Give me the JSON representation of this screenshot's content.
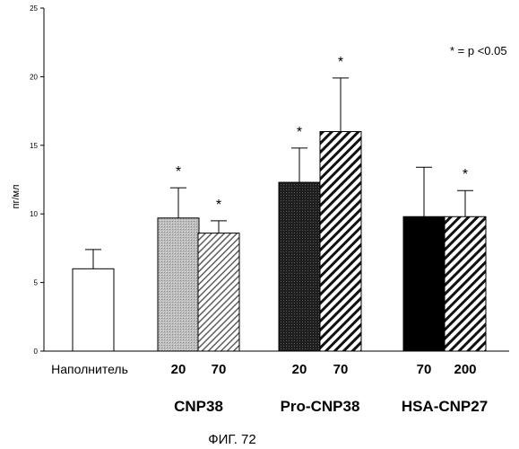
{
  "chart_data": {
    "type": "bar",
    "ylabel": "пг/мл",
    "ylim": [
      0,
      25
    ],
    "yticks": [
      "0",
      "5",
      "10",
      "15",
      "20",
      "25"
    ],
    "annotation": "* = p <0.05",
    "caption": "ФИГ. 72",
    "bars": [
      {
        "label": "Наполнитель",
        "group": "",
        "value": 6.0,
        "error": 1.4,
        "significant": false,
        "fill": "white"
      },
      {
        "label": "20",
        "group": "CNP38",
        "value": 9.7,
        "error": 2.2,
        "significant": true,
        "fill": "gray-stipple"
      },
      {
        "label": "70",
        "group": "CNP38",
        "value": 8.6,
        "error": 0.9,
        "significant": true,
        "fill": "light-hatch"
      },
      {
        "label": "20",
        "group": "Pro-CNP38",
        "value": 12.3,
        "error": 2.5,
        "significant": true,
        "fill": "dark"
      },
      {
        "label": "70",
        "group": "Pro-CNP38",
        "value": 16.0,
        "error": 3.9,
        "significant": true,
        "fill": "hatch"
      },
      {
        "label": "70",
        "group": "HSA-CNP27",
        "value": 9.8,
        "error": 3.6,
        "significant": false,
        "fill": "black"
      },
      {
        "label": "200",
        "group": "HSA-CNP27",
        "value": 9.8,
        "error": 1.9,
        "significant": true,
        "fill": "hatch"
      }
    ],
    "groups": [
      "CNP38",
      "Pro-CNP38",
      "HSA-CNP27"
    ],
    "star_symbol": "*"
  }
}
